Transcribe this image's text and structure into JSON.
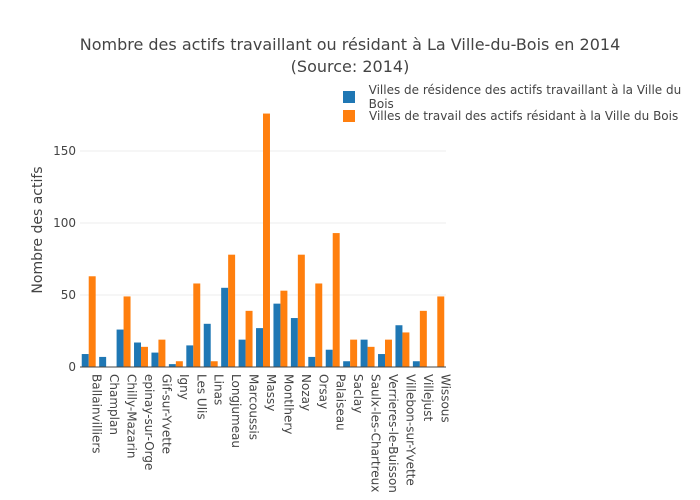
{
  "chart_data": {
    "type": "bar",
    "title": "Nombre des actifs travaillant ou résidant à La Ville-du-Bois en 2014",
    "subtitle": "(Source: 2014)",
    "xlabel": "",
    "ylabel": "Nombre des actifs",
    "ylim": [
      0,
      180
    ],
    "yticks": [
      0,
      50,
      100,
      150
    ],
    "grid": true,
    "legend_position": "top-right",
    "categories": [
      "Ballainvilliers",
      "Champlan",
      "Chilly-Mazarin",
      "epinay-sur-Orge",
      "Gif-sur-Yvette",
      "Igny",
      "Les Ulis",
      "Linas",
      "Longjumeau",
      "Marcoussis",
      "Massy",
      "Montlhery",
      "Nozay",
      "Orsay",
      "Palaiseau",
      "Saclay",
      "Saulx-les-Chartreux",
      "Verrieres-le-Buisson",
      "Villebon-sur-Yvette",
      "Villejust",
      "Wissous"
    ],
    "series": [
      {
        "name": "Villes de résidence des actifs travaillant à la Ville du Bois",
        "color": "#1f77b4",
        "values": [
          9,
          7,
          26,
          17,
          10,
          2,
          15,
          30,
          55,
          19,
          27,
          44,
          34,
          7,
          12,
          4,
          19,
          9,
          29,
          4,
          0
        ]
      },
      {
        "name": "Villes de travail des actifs résidant à la Ville du Bois",
        "color": "#ff7f0e",
        "values": [
          63,
          0,
          49,
          14,
          19,
          4,
          58,
          4,
          78,
          39,
          176,
          53,
          78,
          58,
          93,
          19,
          14,
          19,
          24,
          39,
          49
        ]
      }
    ]
  }
}
